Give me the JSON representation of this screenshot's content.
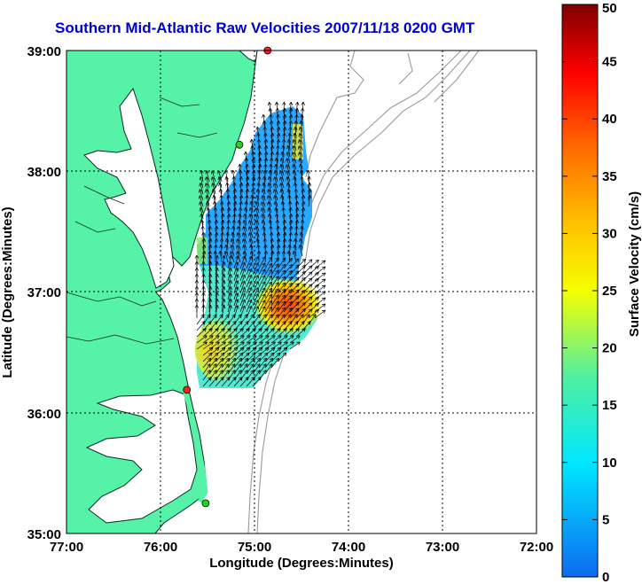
{
  "title": "Southern Mid-Atlantic Raw Velocities 2007/11/18 0200 GMT",
  "x_axis": {
    "label": "Longitude (Degrees:Minutes)",
    "ticks": [
      "77:00",
      "76:00",
      "75:00",
      "74:00",
      "73:00",
      "72:00"
    ]
  },
  "y_axis": {
    "label": "Latitude (Degrees:Minutes)",
    "ticks": [
      "39:00",
      "38:00",
      "37:00",
      "36:00",
      "35:00"
    ]
  },
  "colorbar": {
    "label": "Surface Velocity (cm/s)",
    "min": 0,
    "max": 50,
    "ticks": [
      "50",
      "45",
      "40",
      "35",
      "30",
      "25",
      "20",
      "15",
      "10",
      "5",
      "0"
    ]
  },
  "map_extent": {
    "lon_min": -77,
    "lon_max": -72,
    "lat_min": 35,
    "lat_max": 39
  },
  "colors": {
    "land": "#55f2a8",
    "coast": "#0d2b1c",
    "bathymetry": "#9a9a9a",
    "grid": "#000000",
    "title": "#0000cc"
  },
  "radar_sites": [
    {
      "lon": -74.86,
      "lat": 39.0,
      "color": "#ff2020"
    },
    {
      "lon": -75.16,
      "lat": 38.22,
      "color": "#22d322"
    },
    {
      "lon": -75.72,
      "lat": 36.19,
      "color": "#ff2020"
    },
    {
      "lon": -75.52,
      "lat": 35.25,
      "color": "#22d322"
    }
  ]
}
